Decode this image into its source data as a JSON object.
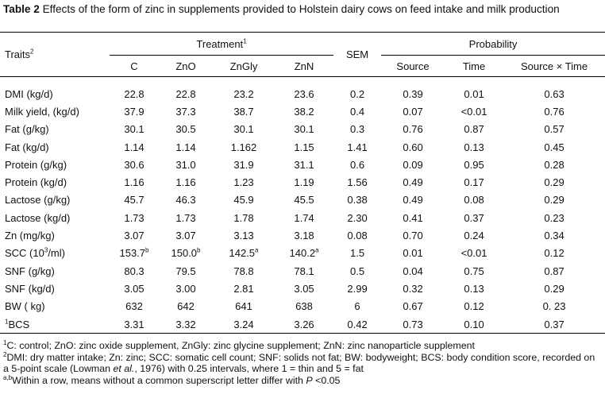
{
  "title": {
    "label": "Table 2",
    "text": " Effects of the form of zinc in supplements provided to Holstein dairy cows on feed intake and milk production"
  },
  "headers": {
    "traits": "Traits",
    "traits_sup": "2",
    "treatment": "Treatment",
    "treatment_sup": "1",
    "sem": "SEM",
    "probability": "Probability",
    "treatments": [
      "C",
      "ZnO",
      "ZnGly",
      "ZnN"
    ],
    "probs": [
      "Source",
      "Time",
      "Source × Time"
    ]
  },
  "rows": [
    {
      "pre": "",
      "label": "DMI (kg/d)",
      "vals": [
        "22.8",
        "22.8",
        "23.2",
        "23.6"
      ],
      "sups": [
        "",
        "",
        "",
        ""
      ],
      "sem": "0.2",
      "p": [
        "0.39",
        "0.01",
        "0.63"
      ]
    },
    {
      "pre": "",
      "label": "Milk yield, (kg/d)",
      "vals": [
        "37.9",
        "37.3",
        "38.7",
        "38.2"
      ],
      "sups": [
        "",
        "",
        "",
        ""
      ],
      "sem": "0.4",
      "p": [
        "0.07",
        "<0.01",
        "0.76"
      ]
    },
    {
      "pre": "",
      "label": "Fat (g/kg)",
      "vals": [
        "30.1",
        "30.5",
        "30.1",
        "30.1"
      ],
      "sups": [
        "",
        "",
        "",
        ""
      ],
      "sem": "0.3",
      "p": [
        "0.76",
        "0.87",
        "0.57"
      ]
    },
    {
      "pre": "",
      "label": "Fat (kg/d)",
      "vals": [
        "1.14",
        "1.14",
        "1.162",
        "1.15"
      ],
      "sups": [
        "",
        "",
        "",
        ""
      ],
      "sem": "1.41",
      "p": [
        "0.60",
        "0.13",
        "0.45"
      ]
    },
    {
      "pre": "",
      "label": "Protein (g/kg)",
      "vals": [
        "30.6",
        "31.0",
        "31.9",
        "31.1"
      ],
      "sups": [
        "",
        "",
        "",
        ""
      ],
      "sem": "0.6",
      "p": [
        "0.09",
        "0.95",
        "0.28"
      ]
    },
    {
      "pre": "",
      "label": "Protein (kg/d)",
      "vals": [
        "1.16",
        "1.16",
        "1.23",
        "1.19"
      ],
      "sups": [
        "",
        "",
        "",
        ""
      ],
      "sem": "1.56",
      "p": [
        "0.49",
        "0.17",
        "0.29"
      ]
    },
    {
      "pre": "",
      "label": "Lactose (g/kg)",
      "vals": [
        "45.7",
        "46.3",
        "45.9",
        "45.5"
      ],
      "sups": [
        "",
        "",
        "",
        ""
      ],
      "sem": "0.38",
      "p": [
        "0.49",
        "0.08",
        "0.29"
      ]
    },
    {
      "pre": "",
      "label": "Lactose (kg/d)",
      "vals": [
        "1.73",
        "1.73",
        "1.78",
        "1.74"
      ],
      "sups": [
        "",
        "",
        "",
        ""
      ],
      "sem": "2.30",
      "p": [
        "0.41",
        "0.37",
        "0.23"
      ]
    },
    {
      "pre": "",
      "label": "Zn (mg/kg)",
      "vals": [
        "3.07",
        "3.07",
        "3.13",
        "3.18"
      ],
      "sups": [
        "",
        "",
        "",
        ""
      ],
      "sem": "0.08",
      "p": [
        "0.70",
        "0.24",
        "0.34"
      ]
    },
    {
      "pre": "",
      "label": "SCC (10",
      "label_sup": "3",
      "label_post": "/ml)",
      "vals": [
        "153.7",
        "150.0",
        "142.5",
        "140.2"
      ],
      "sups": [
        "b",
        "b",
        "a",
        "a"
      ],
      "sem": "1.5",
      "p": [
        "0.01",
        "<0.01",
        "0.12"
      ]
    },
    {
      "pre": "",
      "label": "SNF (g/kg)",
      "vals": [
        "80.3",
        "79.5",
        "78.8",
        "78.1"
      ],
      "sups": [
        "",
        "",
        "",
        ""
      ],
      "sem": "0.5",
      "p": [
        "0.04",
        "0.75",
        "0.87"
      ]
    },
    {
      "pre": "",
      "label": "SNF (kg/d)",
      "vals": [
        "3.05",
        "3.00",
        "2.81",
        "3.05"
      ],
      "sups": [
        "",
        "",
        "",
        ""
      ],
      "sem": "2.99",
      "p": [
        "0.32",
        "0.13",
        "0.29"
      ]
    },
    {
      "pre": "",
      "label": "BW ( kg)",
      "vals": [
        "632",
        "642",
        "641",
        "638"
      ],
      "sups": [
        "",
        "",
        "",
        ""
      ],
      "sem": "6",
      "p": [
        "0.67",
        "0.12",
        "0. 23"
      ]
    },
    {
      "pre": "1",
      "label": "BCS",
      "vals": [
        "3.31",
        "3.32",
        "3.24",
        "3.26"
      ],
      "sups": [
        "",
        "",
        "",
        ""
      ],
      "sem": "0.42",
      "p": [
        "0.73",
        "0.10",
        "0.37"
      ]
    }
  ],
  "footnotes": {
    "f1_sup": "1",
    "f1": "C: control; ZnO: zinc oxide supplement, ZnGly: zinc glycine supplement; ZnN: zinc nanoparticle supplement",
    "f2_sup": "2",
    "f2_a": "DMI: dry matter intake; Zn: zinc; SCC: somatic cell count; SNF: solids not fat; BW: bodyweight; BCS: body condition score, recorded on a 5-point scale (Lowman ",
    "f2_em": "et al.",
    "f2_b": ", 1976) with 0.25 intervals, where 1 = thin and 5 = fat",
    "f3_sup": "a,b",
    "f3_a": "Within a row, means without a common superscript letter differ with ",
    "f3_em": "P",
    "f3_b": " <0.05"
  }
}
